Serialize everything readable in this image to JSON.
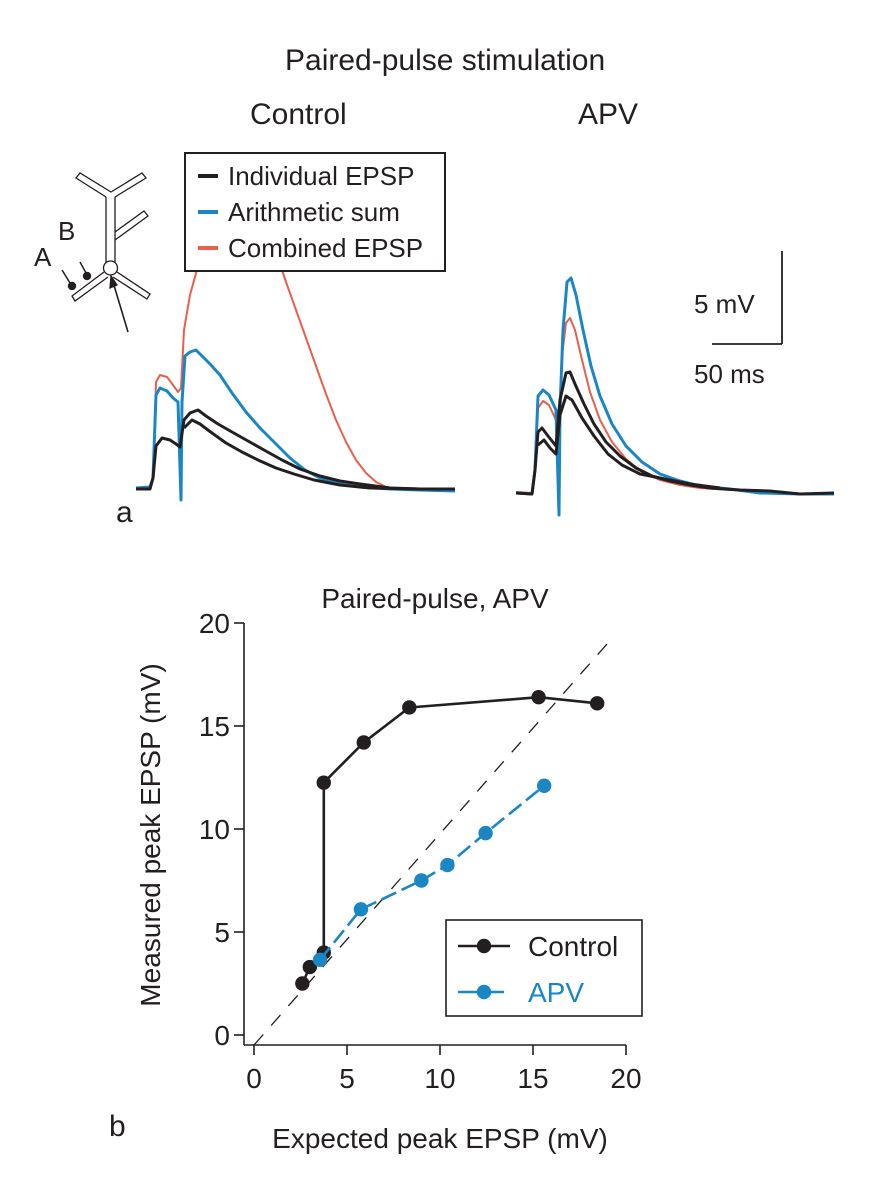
{
  "panel_a": {
    "panel_label": "a",
    "title": "Paired-pulse stimulation",
    "conditions": [
      "Control",
      "APV"
    ],
    "legend": [
      {
        "label": "Individual EPSP",
        "color": "#231f20"
      },
      {
        "label": "Arithmetic sum",
        "color": "#1b86c4"
      },
      {
        "label": "Combined EPSP",
        "color": "#e8604c"
      }
    ],
    "scale_bar": {
      "voltage": "5 mV",
      "time": "50 ms"
    },
    "schematic": {
      "synapse_labels": [
        "A",
        "B"
      ]
    }
  },
  "chart_data": {
    "type": "scatter",
    "panel_label": "b",
    "title": "Paired-pulse, APV",
    "xlabel": "Expected peak EPSP (mV)",
    "ylabel": "Measured peak EPSP (mV)",
    "xlim": [
      0,
      20
    ],
    "ylim": [
      0,
      20
    ],
    "xticks": [
      "0",
      "5",
      "10",
      "15",
      "20"
    ],
    "yticks": [
      "0",
      "5",
      "10",
      "15",
      "20"
    ],
    "grid": false,
    "legend_position": "bottom-right",
    "reference_line": {
      "label": "unity",
      "x": [
        0,
        19
      ],
      "y": [
        0,
        19
      ],
      "style": "dashed"
    },
    "series": [
      {
        "name": "Control",
        "color": "#231f20",
        "style": "solid",
        "x": [
          2.6,
          3.0,
          3.75,
          3.75,
          5.9,
          8.35,
          15.3,
          18.45
        ],
        "y": [
          2.5,
          3.3,
          4.0,
          12.25,
          14.2,
          15.9,
          16.4,
          16.1
        ]
      },
      {
        "name": "APV",
        "color": "#1b86c4",
        "style": "dashed",
        "x": [
          3.55,
          5.75,
          9.0,
          10.4,
          12.45,
          15.6
        ],
        "y": [
          3.65,
          6.1,
          7.5,
          8.25,
          9.8,
          12.1
        ]
      }
    ]
  }
}
